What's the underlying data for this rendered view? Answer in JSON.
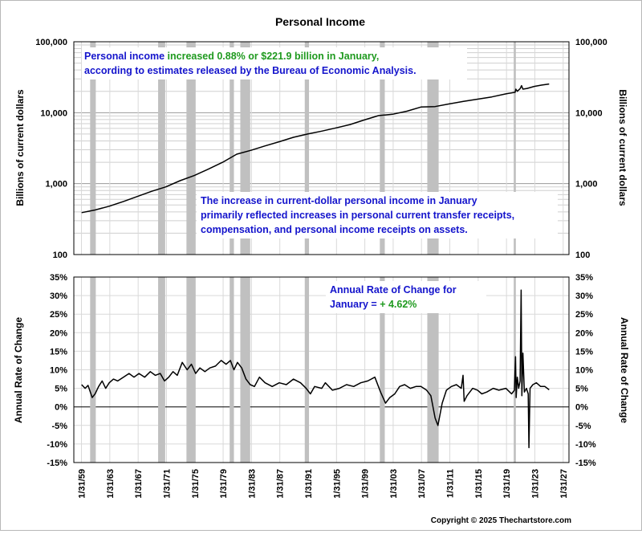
{
  "title": "Personal Income",
  "copyright": "Copyright © 2025 Thechartstore.com",
  "colors": {
    "text_blue": "#1414cc",
    "text_green": "#1f9a1f",
    "recession": "#c0c0c0",
    "line": "#000000"
  },
  "annotations": {
    "top": {
      "line1_a": "Personal income ",
      "line1_b": "increased 0.88% or $221.9 billion in January,",
      "line2": "according to estimates released by the Bureau of Economic Analysis."
    },
    "middle": {
      "line1": "The increase in current-dollar personal income in January",
      "line2": "primarily reflected increases in personal current transfer receipts,",
      "line3": "compensation, and personal income receipts on assets."
    },
    "bottom": {
      "line1": "Annual Rate of Change for",
      "line2_a": "January = ",
      "line2_b": "+ 4.62%"
    }
  },
  "chart_data": [
    {
      "type": "line",
      "ylabel": "Billions of current dollars",
      "yscale": "log",
      "ylim": [
        100,
        100000
      ],
      "y_ticks": [
        "100",
        "1,000",
        "10,000",
        "100,000"
      ],
      "y_tick_values": [
        100,
        1000,
        10000,
        100000
      ],
      "xlim": [
        1958.0,
        2027.9
      ],
      "series": [
        {
          "x": [
            1959.1,
            1961,
            1963,
            1965,
            1967,
            1969,
            1971,
            1973,
            1975,
            1977,
            1979,
            1981,
            1983,
            1985,
            1987,
            1989,
            1991,
            1993,
            1995,
            1997,
            1999,
            2001,
            2003,
            2005,
            2007,
            2009,
            2011,
            2013,
            2015,
            2017,
            2019,
            2020.3,
            2020.4,
            2020.6,
            2021.0,
            2021.2,
            2021.4,
            2022,
            2023,
            2024,
            2025.1
          ],
          "values": [
            390,
            425,
            480,
            560,
            660,
            780,
            900,
            1100,
            1300,
            1600,
            2000,
            2600,
            2950,
            3400,
            3900,
            4500,
            5000,
            5500,
            6100,
            6800,
            7900,
            9100,
            9500,
            10500,
            12000,
            12200,
            13300,
            14400,
            15500,
            16700,
            18400,
            19400,
            21500,
            20000,
            21800,
            24000,
            21500,
            22000,
            23500,
            24500,
            25400
          ]
        }
      ]
    },
    {
      "type": "line",
      "ylabel": "Annual Rate of Change",
      "ylim": [
        -15,
        35
      ],
      "y_ticks": [
        "-15%",
        "-10%",
        "-5%",
        "0%",
        "5%",
        "10%",
        "15%",
        "20%",
        "25%",
        "30%",
        "35%"
      ],
      "y_tick_values": [
        -15,
        -10,
        -5,
        0,
        5,
        10,
        15,
        20,
        25,
        30,
        35
      ],
      "x_ticks": [
        "1/31/59",
        "1/31/63",
        "1/31/67",
        "1/31/71",
        "1/31/75",
        "1/31/79",
        "1/31/83",
        "1/31/87",
        "1/31/91",
        "1/31/95",
        "1/31/99",
        "1/31/03",
        "1/31/07",
        "1/31/11",
        "1/31/15",
        "1/31/19",
        "1/31/23",
        "1/31/27"
      ],
      "x_tick_values": [
        1959.08,
        1963.08,
        1967.08,
        1971.08,
        1975.08,
        1979.08,
        1983.08,
        1987.08,
        1991.08,
        1995.08,
        1999.08,
        2003.08,
        2007.08,
        2011.08,
        2015.08,
        2019.08,
        2023.08,
        2027.08
      ],
      "xlim": [
        1958.0,
        2027.9
      ],
      "recessions": [
        [
          1960.3,
          1961.1
        ],
        [
          1969.9,
          1970.9
        ],
        [
          1973.9,
          1975.2
        ],
        [
          1980.0,
          1980.6
        ],
        [
          1981.5,
          1982.9
        ],
        [
          1990.6,
          1991.2
        ],
        [
          2001.2,
          2001.9
        ],
        [
          2007.9,
          2009.5
        ],
        [
          2020.1,
          2020.4
        ]
      ],
      "series": [
        {
          "x": [
            1959.1,
            1959.6,
            1960.0,
            1960.6,
            1961.0,
            1961.5,
            1962.0,
            1962.5,
            1963.0,
            1963.6,
            1964.2,
            1965.0,
            1965.8,
            1966.5,
            1967.2,
            1968.0,
            1968.8,
            1969.5,
            1970.2,
            1970.8,
            1971.4,
            1972.0,
            1972.6,
            1973.3,
            1974.0,
            1974.6,
            1975.2,
            1975.8,
            1976.5,
            1977.2,
            1978.0,
            1978.8,
            1979.5,
            1980.1,
            1980.6,
            1981.1,
            1981.7,
            1982.3,
            1982.9,
            1983.5,
            1984.2,
            1985.0,
            1986.0,
            1987.0,
            1988.0,
            1989.0,
            1990.0,
            1990.8,
            1991.4,
            1992.0,
            1993.0,
            1993.5,
            1994.5,
            1995.5,
            1996.5,
            1997.5,
            1998.5,
            1999.5,
            2000.5,
            2001.3,
            2002.0,
            2002.6,
            2003.3,
            2004.0,
            2004.7,
            2005.5,
            2006.3,
            2007.0,
            2007.8,
            2008.4,
            2009.0,
            2009.4,
            2010.0,
            2010.6,
            2011.3,
            2012.0,
            2012.7,
            2012.95,
            2013.1,
            2013.5,
            2014.3,
            2015.0,
            2015.6,
            2016.3,
            2017.2,
            2018.0,
            2019.0,
            2019.8,
            2020.2,
            2020.35,
            2020.45,
            2020.6,
            2020.8,
            2021.0,
            2021.15,
            2021.25,
            2021.4,
            2021.6,
            2021.9,
            2022.15,
            2022.25,
            2022.4,
            2022.8,
            2023.3,
            2023.9,
            2024.5,
            2025.1
          ],
          "values": [
            6.0,
            5.0,
            5.8,
            2.5,
            3.5,
            5.5,
            7.0,
            5.0,
            6.5,
            7.5,
            7.0,
            8.0,
            9.0,
            8.0,
            9.0,
            8.0,
            9.5,
            8.5,
            9.0,
            7.0,
            8.0,
            9.5,
            8.5,
            12.0,
            10.0,
            11.5,
            9.0,
            10.5,
            9.5,
            10.5,
            11.0,
            12.5,
            11.5,
            12.5,
            10.0,
            12.0,
            10.5,
            7.5,
            6.0,
            5.5,
            8.0,
            6.5,
            5.5,
            6.5,
            6.0,
            7.5,
            6.5,
            5.0,
            3.5,
            5.5,
            5.0,
            6.5,
            4.5,
            5.0,
            6.0,
            5.5,
            6.5,
            7.0,
            8.0,
            4.0,
            1.0,
            2.5,
            3.5,
            5.5,
            6.0,
            5.0,
            5.5,
            5.5,
            4.5,
            3.0,
            -3.0,
            -5.0,
            1.0,
            4.5,
            5.5,
            6.0,
            5.0,
            8.5,
            1.5,
            3.0,
            5.0,
            4.5,
            3.5,
            4.0,
            5.0,
            4.5,
            5.0,
            3.5,
            4.5,
            13.5,
            2.5,
            8.0,
            5.0,
            7.0,
            31.5,
            3.0,
            14.5,
            4.0,
            5.0,
            3.5,
            -11.0,
            5.0,
            6.0,
            6.5,
            5.5,
            5.5,
            4.62
          ]
        }
      ]
    }
  ]
}
